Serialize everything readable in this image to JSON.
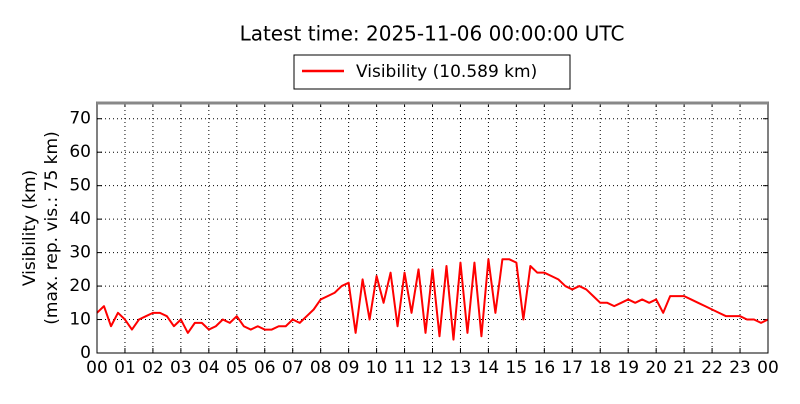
{
  "chart_data": {
    "type": "line",
    "title": "Latest time: 2025-11-06 00:00:00 UTC",
    "ylabel": [
      "Visibility (km)",
      "(max. rep. vis.: 75 km)"
    ],
    "x": [
      0,
      0.25,
      0.5,
      0.75,
      1,
      1.25,
      1.5,
      1.75,
      2,
      2.25,
      2.5,
      2.75,
      3,
      3.25,
      3.5,
      3.75,
      4,
      4.25,
      4.5,
      4.75,
      5,
      5.25,
      5.5,
      5.75,
      6,
      6.25,
      6.5,
      6.75,
      7,
      7.25,
      7.5,
      7.75,
      8,
      8.25,
      8.5,
      8.75,
      9,
      9.25,
      9.5,
      9.75,
      10,
      10.25,
      10.5,
      10.75,
      11,
      11.25,
      11.5,
      11.75,
      12,
      12.25,
      12.5,
      12.75,
      13,
      13.25,
      13.5,
      13.75,
      14,
      14.25,
      14.5,
      14.75,
      15,
      15.25,
      15.5,
      15.75,
      16,
      16.25,
      16.5,
      16.75,
      17,
      17.25,
      17.5,
      17.75,
      18,
      18.25,
      18.5,
      18.75,
      19,
      19.25,
      19.5,
      19.75,
      20,
      20.25,
      20.5,
      20.75,
      21,
      21.25,
      21.5,
      21.75,
      22,
      22.25,
      22.5,
      22.75,
      23,
      23.25,
      23.5,
      23.75,
      24
    ],
    "series": [
      {
        "name": "Visibility (10.589 km)",
        "color": "#ff0000",
        "values": [
          12,
          14,
          8,
          12,
          10,
          7,
          10,
          11,
          12,
          12,
          11,
          8,
          10,
          6,
          9,
          9,
          7,
          8,
          10,
          9,
          11,
          8,
          7,
          8,
          7,
          7,
          8,
          8,
          10,
          9,
          11,
          13,
          16,
          17,
          18,
          20,
          21,
          6,
          22,
          10,
          23,
          15,
          24,
          8,
          24,
          12,
          25,
          6,
          25,
          5,
          26,
          4,
          27,
          6,
          27,
          5,
          28,
          12,
          28,
          28,
          27,
          10,
          26,
          24,
          24,
          23,
          22,
          20,
          19,
          20,
          19,
          17,
          15,
          15,
          14,
          15,
          16,
          15,
          16,
          15,
          16,
          12,
          17,
          17,
          17,
          16,
          15,
          14,
          13,
          12,
          11,
          11,
          11,
          10,
          10,
          9,
          10
        ]
      }
    ],
    "xlim": [
      0,
      24
    ],
    "xticks": [
      {
        "value": 0,
        "label": "00"
      },
      {
        "value": 1,
        "label": "01"
      },
      {
        "value": 2,
        "label": "02"
      },
      {
        "value": 3,
        "label": "03"
      },
      {
        "value": 4,
        "label": "04"
      },
      {
        "value": 5,
        "label": "05"
      },
      {
        "value": 6,
        "label": "06"
      },
      {
        "value": 7,
        "label": "07"
      },
      {
        "value": 8,
        "label": "08"
      },
      {
        "value": 9,
        "label": "09"
      },
      {
        "value": 10,
        "label": "10"
      },
      {
        "value": 11,
        "label": "11"
      },
      {
        "value": 12,
        "label": "12"
      },
      {
        "value": 13,
        "label": "13"
      },
      {
        "value": 14,
        "label": "14"
      },
      {
        "value": 15,
        "label": "15"
      },
      {
        "value": 16,
        "label": "16"
      },
      {
        "value": 17,
        "label": "17"
      },
      {
        "value": 18,
        "label": "18"
      },
      {
        "value": 19,
        "label": "19"
      },
      {
        "value": 20,
        "label": "20"
      },
      {
        "value": 21,
        "label": "21"
      },
      {
        "value": 22,
        "label": "22"
      },
      {
        "value": 23,
        "label": "23"
      },
      {
        "value": 24,
        "label": "00"
      }
    ],
    "ylim": [
      0,
      75
    ],
    "yticks": [
      0,
      10,
      20,
      30,
      40,
      50,
      60,
      70
    ],
    "grid": true
  }
}
